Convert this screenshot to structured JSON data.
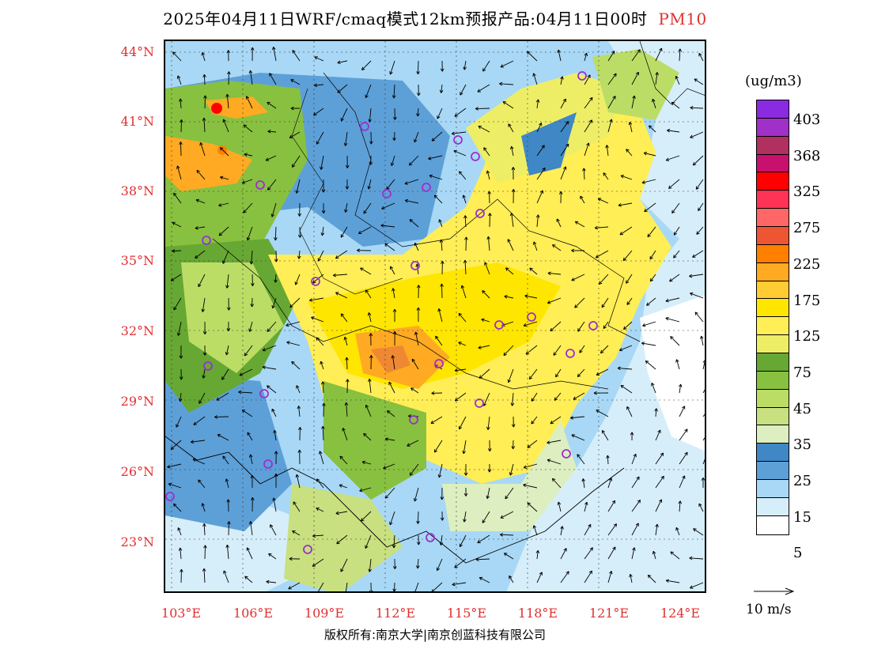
{
  "title": {
    "text": "2025年04月11日WRF/cmaq模式12km预报产品:04月11日00时",
    "variable": "PM10"
  },
  "lat_labels": [
    "44°N",
    "41°N",
    "38°N",
    "35°N",
    "32°N",
    "29°N",
    "26°N",
    "23°N"
  ],
  "lon_labels": [
    "103°E",
    "106°E",
    "109°E",
    "112°E",
    "115°E",
    "118°E",
    "121°E",
    "124°E"
  ],
  "legend": {
    "unit": "(ug/m3)",
    "ticks": [
      "403",
      "368",
      "325",
      "275",
      "225",
      "175",
      "125",
      "75",
      "45",
      "35",
      "25",
      "15",
      "5"
    ],
    "colors": [
      "#8a2be2",
      "#a030c8",
      "#b03060",
      "#c8106e",
      "#ff0000",
      "#ff3355",
      "#ff6666",
      "#ee5533",
      "#ff8000",
      "#ffaa22",
      "#ffcc33",
      "#ffe600",
      "#ffee55",
      "#eeee66",
      "#66a833",
      "#88c040",
      "#bbdd66",
      "#c8e080",
      "#ddeec0",
      "#3f88c5",
      "#5da0d8",
      "#a8d8f5",
      "#d6eefa",
      "#ffffff"
    ]
  },
  "wind_scale": {
    "label": "10 m/s"
  },
  "copyright": "版权所有:南京大学|南京创蓝科技有限公司",
  "stations_color": "#9a30d0"
}
